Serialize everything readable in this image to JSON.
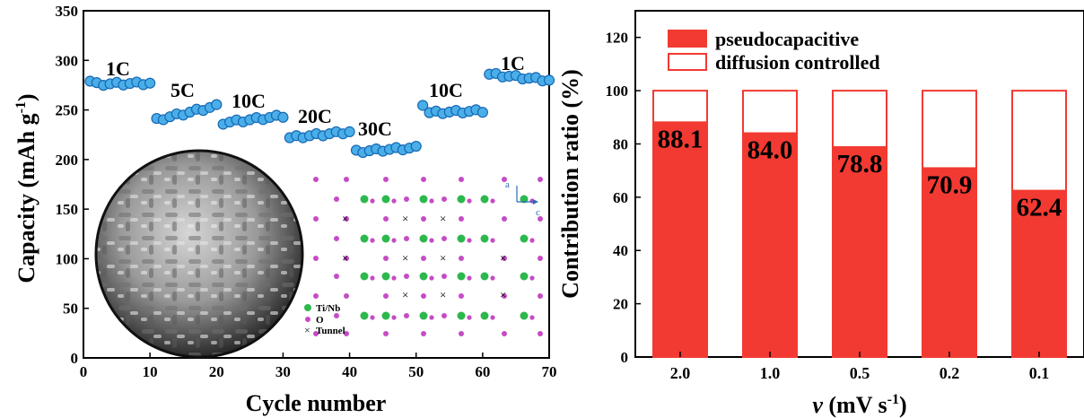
{
  "chart_data": [
    {
      "type": "scatter",
      "xlabel": "Cycle number",
      "ylabel_main": "Capacity (mAh g",
      "ylabel_sup": "-1",
      "ylabel_end": ")",
      "xlim": [
        0,
        70
      ],
      "ylim": [
        0,
        350
      ],
      "xticks": [
        0,
        10,
        20,
        30,
        40,
        50,
        60,
        70
      ],
      "yticks": [
        0,
        50,
        100,
        150,
        200,
        250,
        300,
        350
      ],
      "colors": {
        "marker_fill": "#4aaee8",
        "marker_edge": "#1668b4",
        "sphere_light": "#bdbdbd",
        "sphere_dark": "#1a1a1a"
      },
      "segments": [
        {
          "label": "1C",
          "start": 1,
          "end": 10,
          "from": 276,
          "to": 277,
          "first": 279
        },
        {
          "label": "5C",
          "start": 11,
          "end": 20,
          "from": 240,
          "to": 254
        },
        {
          "label": "10C",
          "start": 21,
          "end": 30,
          "from": 237,
          "to": 244
        },
        {
          "label": "20C",
          "start": 31,
          "end": 40,
          "from": 222,
          "to": 228
        },
        {
          "label": "30C",
          "start": 41,
          "end": 50,
          "from": 208,
          "to": 212
        },
        {
          "label": "10C",
          "start": 51,
          "end": 60,
          "from": 247,
          "to": 249,
          "first": 256
        },
        {
          "label": "1C",
          "start": 61,
          "end": 70,
          "from": 286,
          "to": 280
        }
      ],
      "rate_labels": [
        "1C",
        "5C",
        "10C",
        "20C",
        "30C",
        "10C",
        "1C"
      ],
      "inset_legend": [
        {
          "symbol": "ball-green",
          "text": "Ti/Nb",
          "color": "#2db84d"
        },
        {
          "symbol": "ball-magenta",
          "text": "O",
          "color": "#c64bc6"
        },
        {
          "symbol": "cross",
          "text": "Tunnel",
          "color": "#333333"
        }
      ],
      "axis_arrow_labels": {
        "up": "a",
        "right": "c"
      }
    },
    {
      "type": "bar",
      "categories": [
        "2.0",
        "1.0",
        "0.5",
        "0.2",
        "0.1"
      ],
      "series": [
        {
          "name": "pseudocapacitive",
          "values": [
            88.1,
            84.0,
            78.8,
            70.9,
            62.4
          ]
        },
        {
          "name": "diffusion controlled",
          "values": [
            11.9,
            16.0,
            21.2,
            29.1,
            37.6
          ]
        }
      ],
      "value_labels": [
        "88.1",
        "84.0",
        "78.8",
        "70.9",
        "62.4"
      ],
      "ylabel": "Contribution ratio (%)",
      "xlabel_var": "v",
      "xlabel_rest": " (mV s",
      "xlabel_sup": "-1",
      "xlabel_end": ")",
      "ylim": [
        0,
        130
      ],
      "yticks": [
        0,
        20,
        40,
        60,
        80,
        100,
        120
      ],
      "legend_position": "top-left",
      "colors": {
        "bar": "#f23a32",
        "edge": "#f23a32"
      }
    }
  ]
}
